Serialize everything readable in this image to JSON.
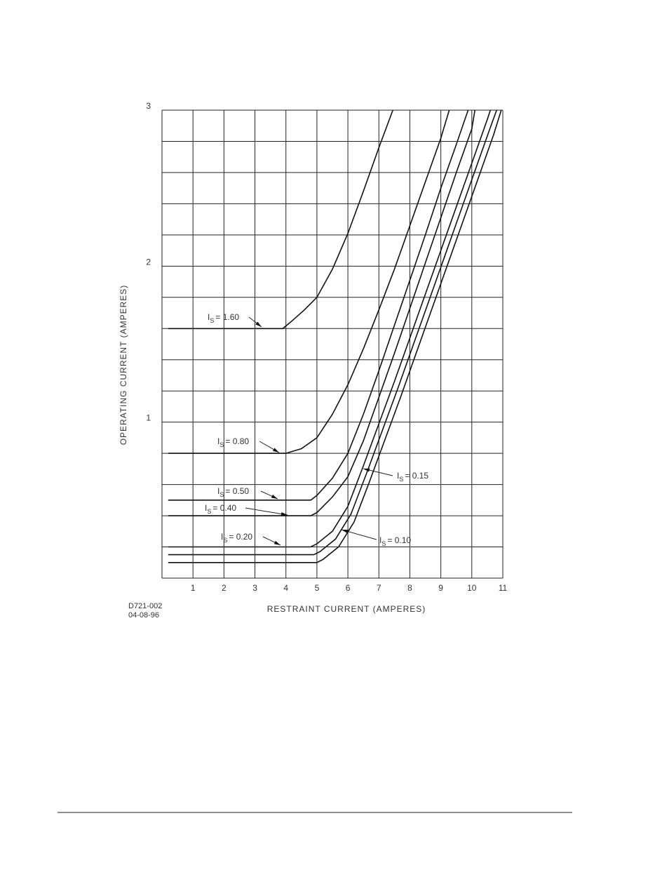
{
  "chart_data": {
    "type": "line",
    "ylabel": "OPERATING CURRENT (AMPERES)",
    "xlabel": "RESTRAINT CURRENT (AMPERES)",
    "drawing_number": "D721-002",
    "date": "04-08-96",
    "xlim": [
      0,
      11
    ],
    "ylim": [
      0,
      3
    ],
    "xticks": [
      1,
      2,
      3,
      4,
      5,
      6,
      7,
      8,
      9,
      10,
      11
    ],
    "xgrid": [
      0,
      1,
      2,
      3,
      4,
      5,
      6,
      7,
      8,
      9,
      10,
      11
    ],
    "yticks": [
      1,
      2,
      3
    ],
    "ygrid": [
      0,
      0.2,
      0.4,
      0.6,
      0.8,
      1,
      1.2,
      1.4,
      1.6,
      1.8,
      2,
      2.2,
      2.4,
      2.6,
      2.8,
      3
    ],
    "grid": true,
    "color": "#111111",
    "series": [
      {
        "label": {
          "text": "I",
          "sub": "S",
          "rest": "=  1.60"
        },
        "x": [
          0.2,
          3,
          3.9,
          4.2,
          4.6,
          5,
          5.5,
          6,
          6.5,
          7,
          7.45
        ],
        "values": [
          1.6,
          1.6,
          1.6,
          1.65,
          1.72,
          1.8,
          1.98,
          2.21,
          2.48,
          2.76,
          3
        ]
      },
      {
        "label": {
          "text": "I",
          "sub": "S",
          "rest": "=  0.80"
        },
        "x": [
          0.2,
          4,
          4.5,
          5,
          5.5,
          6,
          6.5,
          7,
          7.5,
          8,
          8.5,
          9,
          9.27
        ],
        "values": [
          0.8,
          0.8,
          0.83,
          0.9,
          1.05,
          1.24,
          1.47,
          1.72,
          1.98,
          2.26,
          2.54,
          2.82,
          3
        ]
      },
      {
        "label": {
          "text": "I",
          "sub": "S",
          "rest": "=  0.50"
        },
        "x": [
          0.2,
          4.8,
          5,
          5.5,
          6,
          6.5,
          7,
          7.5,
          8,
          8.5,
          9,
          9.5,
          9.88
        ],
        "values": [
          0.5,
          0.5,
          0.53,
          0.64,
          0.8,
          1.05,
          1.33,
          1.62,
          1.91,
          2.2,
          2.5,
          2.78,
          3
        ]
      },
      {
        "label": {
          "text": "I",
          "sub": "S",
          "rest": "=  0.40"
        },
        "x": [
          0.2,
          4.8,
          5,
          5.5,
          6,
          6.5,
          7,
          7.5,
          8,
          8.5,
          9,
          9.5,
          10,
          10.1
        ],
        "values": [
          0.4,
          0.4,
          0.42,
          0.52,
          0.65,
          0.88,
          1.16,
          1.44,
          1.73,
          2.02,
          2.31,
          2.6,
          2.88,
          3
        ]
      },
      {
        "label": {
          "text": "I",
          "sub": "S",
          "rest": "=  0.20"
        },
        "x": [
          0.2,
          4.8,
          5,
          5.5,
          6,
          6.5,
          7,
          7.5,
          8,
          8.5,
          9,
          9.5,
          10,
          10.5,
          10.6
        ],
        "values": [
          0.2,
          0.2,
          0.22,
          0.3,
          0.46,
          0.72,
          0.99,
          1.26,
          1.54,
          1.82,
          2.1,
          2.38,
          2.66,
          2.94,
          3
        ]
      },
      {
        "label": {
          "text": "I",
          "sub": "S",
          "rest": "=  0.15"
        },
        "x": [
          0.2,
          4.9,
          5.1,
          5.6,
          6.1,
          6.6,
          7.1,
          7.6,
          8.1,
          8.6,
          9.1,
          9.6,
          10.1,
          10.6,
          10.8
        ],
        "values": [
          0.15,
          0.15,
          0.17,
          0.25,
          0.41,
          0.67,
          0.94,
          1.21,
          1.49,
          1.77,
          2.05,
          2.33,
          2.61,
          2.89,
          3
        ]
      },
      {
        "label": {
          "text": "I",
          "sub": "S",
          "rest": "=  0.10"
        },
        "x": [
          0.2,
          5,
          5.2,
          5.7,
          6.2,
          6.7,
          7.2,
          7.7,
          8.2,
          8.7,
          9.2,
          9.7,
          10.2,
          10.7,
          10.95
        ],
        "values": [
          0.1,
          0.1,
          0.12,
          0.2,
          0.36,
          0.62,
          0.89,
          1.16,
          1.44,
          1.72,
          2,
          2.28,
          2.56,
          2.84,
          3
        ]
      }
    ]
  }
}
